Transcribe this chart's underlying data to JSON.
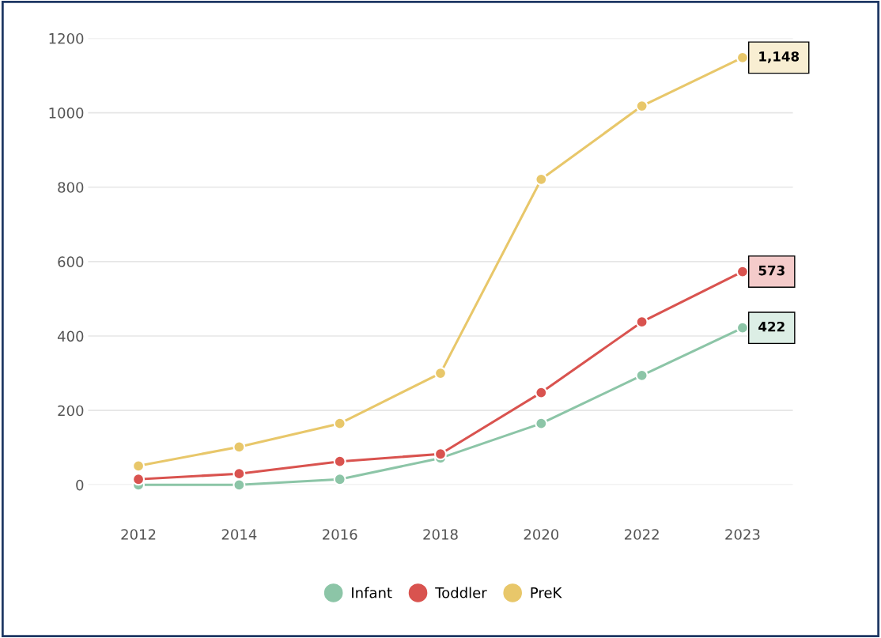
{
  "chart_data": {
    "type": "line",
    "categories": [
      "2012",
      "2014",
      "2016",
      "2018",
      "2020",
      "2022",
      "2023"
    ],
    "series": [
      {
        "name": "Infant",
        "color": "#8cc5a7",
        "values": [
          0,
          0,
          15,
          72,
          165,
          294,
          422
        ]
      },
      {
        "name": "Toddler",
        "color": "#d9534f",
        "values": [
          15,
          30,
          63,
          83,
          248,
          438,
          573
        ]
      },
      {
        "name": "PreK",
        "color": "#e8c76a",
        "values": [
          51,
          102,
          165,
          300,
          821,
          1018,
          1148
        ]
      }
    ],
    "annotations": [
      {
        "text": "1,148",
        "x": "2023",
        "y": 1148
      },
      {
        "text": "573",
        "x": "2023",
        "y": 573
      },
      {
        "text": "422",
        "x": "2023",
        "y": 422
      }
    ],
    "ylim": [
      0,
      1200
    ],
    "yticks": [
      0,
      200,
      400,
      600,
      800,
      1000,
      1200
    ],
    "grid": "y",
    "legend": "bottom",
    "marker": "circle",
    "line_style": "solid"
  }
}
